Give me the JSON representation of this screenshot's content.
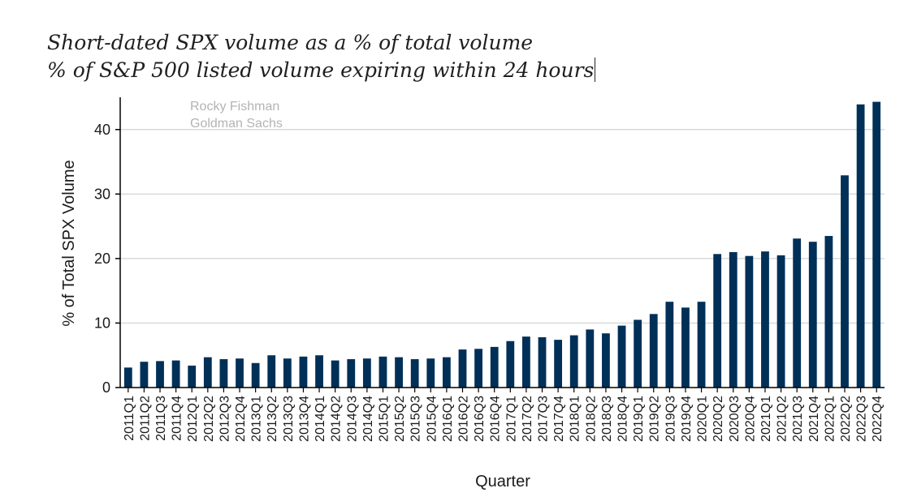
{
  "title": "Short-dated SPX volume as a % of total volume",
  "subtitle": "% of S&P 500 listed volume expiring within 24 hours",
  "watermark": {
    "line1": "Rocky Fishman",
    "line2": "Goldman Sachs"
  },
  "colors": {
    "bar": "#003057",
    "grid": "#d9d9d9",
    "axis": "#000000"
  },
  "chart_data": {
    "type": "bar",
    "title": "",
    "xlabel": "Quarter",
    "ylabel": "% of Total SPX Volume",
    "ylim": [
      0,
      45
    ],
    "yticks": [
      0,
      10,
      20,
      30,
      40
    ],
    "grid": "horizontal",
    "categories": [
      "2011Q1",
      "2011Q2",
      "2011Q3",
      "2011Q4",
      "2012Q1",
      "2012Q2",
      "2012Q3",
      "2012Q4",
      "2013Q1",
      "2013Q2",
      "2013Q3",
      "2013Q4",
      "2014Q1",
      "2014Q2",
      "2014Q3",
      "2014Q4",
      "2015Q1",
      "2015Q2",
      "2015Q3",
      "2015Q4",
      "2016Q1",
      "2016Q2",
      "2016Q3",
      "2016Q4",
      "2017Q1",
      "2017Q2",
      "2017Q3",
      "2017Q4",
      "2018Q1",
      "2018Q2",
      "2018Q3",
      "2018Q4",
      "2019Q1",
      "2019Q2",
      "2019Q3",
      "2019Q4",
      "2020Q1",
      "2020Q2",
      "2020Q3",
      "2020Q4",
      "2021Q1",
      "2021Q2",
      "2021Q3",
      "2021Q4",
      "2022Q1",
      "2022Q2",
      "2022Q3",
      "2022Q4"
    ],
    "values": [
      3.1,
      4.0,
      4.1,
      4.2,
      3.4,
      4.7,
      4.4,
      4.5,
      3.8,
      5.0,
      4.5,
      4.8,
      5.0,
      4.2,
      4.4,
      4.5,
      4.8,
      4.7,
      4.4,
      4.5,
      4.7,
      5.9,
      6.0,
      6.3,
      7.2,
      7.9,
      7.8,
      7.4,
      8.1,
      9.0,
      8.4,
      9.6,
      10.5,
      11.4,
      13.3,
      12.4,
      13.3,
      20.7,
      21.0,
      20.4,
      21.1,
      20.5,
      23.1,
      22.6,
      23.5,
      32.9,
      43.9,
      44.3
    ]
  }
}
